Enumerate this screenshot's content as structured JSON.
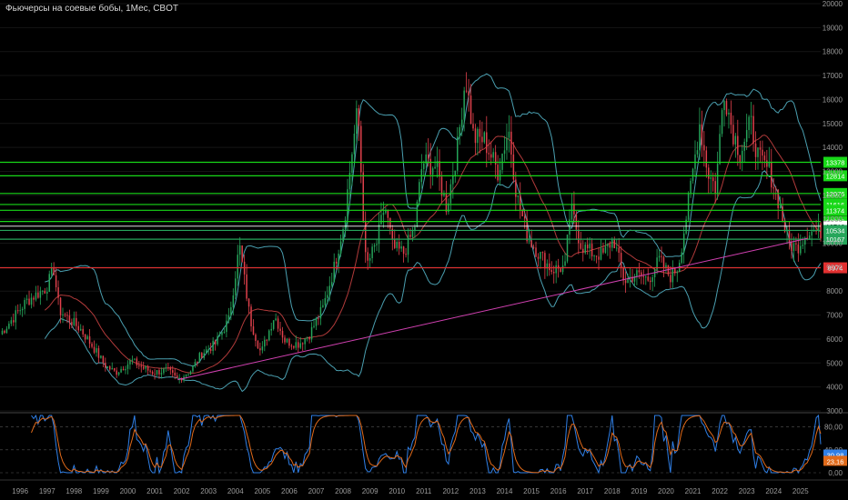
{
  "title": "Фьючерсы на соевые бобы, 1Мес, CBOT",
  "colors": {
    "background": "#000000",
    "up": "#26a65b",
    "down": "#e2414c",
    "bollinger": "#4a9fb0",
    "ma": "#b03a3a",
    "level": "#18d818",
    "support": "#e23030",
    "trend": "#d040b0",
    "stoch_k": "#2f7fe6",
    "stoch_d": "#e06a1a"
  },
  "chart_data": [
    {
      "type": "candlestick",
      "ylim": [
        3000,
        20000
      ],
      "y_ticks": [
        "3000",
        "4000",
        "5000",
        "6000",
        "7000",
        "8000",
        "9000",
        "10000",
        "11000",
        "12000",
        "13000",
        "14000",
        "15000",
        "16000",
        "17000",
        "18000",
        "19000",
        "20000"
      ],
      "x_ticks": [
        "1996",
        "1997",
        "1998",
        "1999",
        "2000",
        "2001",
        "2002",
        "2003",
        "2004",
        "2005",
        "2006",
        "2007",
        "2008",
        "2009",
        "2010",
        "2011",
        "2012",
        "2013",
        "2014",
        "2015",
        "2016",
        "2017",
        "2018",
        "2019",
        "2020",
        "2021",
        "2022",
        "2023",
        "2024",
        "2025"
      ],
      "xlim": [
        1995.3,
        2025.8
      ],
      "close_series": [
        [
          1995.3,
          6200
        ],
        [
          1995.8,
          6900
        ],
        [
          1996.3,
          7600
        ],
        [
          1996.7,
          7900
        ],
        [
          1997.0,
          8100
        ],
        [
          1997.3,
          8900
        ],
        [
          1997.5,
          7200
        ],
        [
          1997.8,
          6900
        ],
        [
          1998.3,
          6400
        ],
        [
          1998.8,
          5600
        ],
        [
          1999.2,
          4900
        ],
        [
          1999.6,
          4600
        ],
        [
          2000.2,
          5100
        ],
        [
          2000.6,
          4800
        ],
        [
          2001.0,
          4600
        ],
        [
          2001.5,
          4700
        ],
        [
          2001.9,
          4300
        ],
        [
          2002.4,
          4700
        ],
        [
          2002.8,
          5400
        ],
        [
          2003.3,
          5800
        ],
        [
          2003.8,
          6800
        ],
        [
          2004.2,
          9900
        ],
        [
          2004.6,
          6800
        ],
        [
          2005.0,
          5400
        ],
        [
          2005.5,
          7000
        ],
        [
          2005.9,
          5900
        ],
        [
          2006.4,
          5800
        ],
        [
          2006.8,
          6200
        ],
        [
          2007.3,
          7300
        ],
        [
          2007.7,
          8900
        ],
        [
          2008.1,
          11000
        ],
        [
          2008.4,
          14000
        ],
        [
          2008.6,
          15600
        ],
        [
          2008.9,
          9000
        ],
        [
          2009.3,
          10000
        ],
        [
          2009.6,
          11600
        ],
        [
          2009.9,
          9800
        ],
        [
          2010.3,
          9600
        ],
        [
          2010.7,
          10600
        ],
        [
          2011.0,
          13400
        ],
        [
          2011.5,
          13200
        ],
        [
          2011.9,
          11500
        ],
        [
          2012.3,
          14000
        ],
        [
          2012.6,
          17000
        ],
        [
          2012.9,
          14400
        ],
        [
          2013.3,
          14300
        ],
        [
          2013.8,
          13000
        ],
        [
          2014.2,
          14800
        ],
        [
          2014.5,
          12000
        ],
        [
          2014.9,
          10300
        ],
        [
          2015.3,
          9600
        ],
        [
          2015.8,
          8900
        ],
        [
          2016.3,
          9000
        ],
        [
          2016.5,
          11500
        ],
        [
          2016.9,
          9900
        ],
        [
          2017.3,
          9600
        ],
        [
          2017.7,
          9500
        ],
        [
          2018.1,
          10200
        ],
        [
          2018.5,
          8400
        ],
        [
          2018.9,
          8700
        ],
        [
          2019.4,
          8500
        ],
        [
          2019.8,
          9300
        ],
        [
          2020.2,
          8600
        ],
        [
          2020.5,
          9000
        ],
        [
          2020.9,
          11800
        ],
        [
          2021.3,
          15000
        ],
        [
          2021.6,
          13000
        ],
        [
          2021.9,
          12300
        ],
        [
          2022.2,
          16500
        ],
        [
          2022.5,
          14800
        ],
        [
          2022.8,
          13800
        ],
        [
          2023.2,
          15000
        ],
        [
          2023.5,
          13500
        ],
        [
          2023.9,
          13000
        ],
        [
          2024.2,
          11900
        ],
        [
          2024.6,
          10000
        ],
        [
          2024.9,
          9800
        ],
        [
          2025.3,
          10500
        ]
      ],
      "horizontal_levels": [
        {
          "label": "13378",
          "value": 13378,
          "color": "#18d818"
        },
        {
          "label": "12814",
          "value": 12814,
          "color": "#18d818"
        },
        {
          "label": "12076",
          "value": 12076,
          "color": "#18d818"
        },
        {
          "label": "11616",
          "value": 11616,
          "color": "#18d818"
        },
        {
          "label": "11374",
          "value": 11374,
          "color": "#18d818"
        },
        {
          "label": "10906",
          "value": 10906,
          "color": "#18d818"
        },
        {
          "label": "10710",
          "value": 10710,
          "color": "#ffffff"
        },
        {
          "label": "10534",
          "value": 10534,
          "color": "#26a65b"
        },
        {
          "label": "10167",
          "value": 10167,
          "color": "#26a65b"
        },
        {
          "label": "8974",
          "value": 8974,
          "color": "#e23030"
        }
      ],
      "trendline": [
        [
          2001.9,
          4300
        ],
        [
          2025.3,
          10200
        ]
      ]
    },
    {
      "type": "stochastic",
      "ylim": [
        0,
        100
      ],
      "y_ticks": [
        "80,00",
        "40,00",
        "0,00"
      ],
      "last_values": {
        "k": "30,98",
        "d": "23,16"
      }
    }
  ]
}
